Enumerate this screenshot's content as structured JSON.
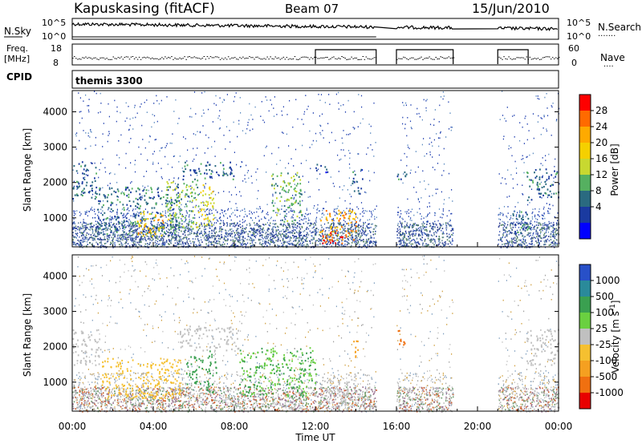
{
  "header": {
    "station": "Kapuskasing (fitACF)",
    "beam": "Beam 07",
    "date": "15/Jun/2010"
  },
  "params": {
    "nsky_label": "N.Sky",
    "nsearch_label": "N.Search",
    "freq_label_1": "Freq.",
    "freq_label_2": "[MHz]",
    "nave_label": "Nave",
    "cpid_label": "CPID",
    "cpid_value": "themis 3300",
    "noise_ticks_left": [
      "10^5",
      "10^0"
    ],
    "noise_ticks_right": [
      "10^5",
      "10^0"
    ],
    "freq_ticks": [
      "18",
      "8"
    ],
    "nave_ticks": [
      "60",
      "0"
    ]
  },
  "chart_data": [
    {
      "type": "heatmap",
      "name": "power",
      "title": "",
      "xlabel": "Time UT",
      "ylabel": "Slant Range [km]",
      "xlim": [
        0,
        24
      ],
      "ylim": [
        180,
        4600
      ],
      "yticks": [
        1000,
        2000,
        3000,
        4000
      ],
      "ytick_labels": [
        "1000",
        "2000",
        "3000",
        "4000"
      ],
      "xtick_labels": [
        "00:00",
        "04:00",
        "08:00",
        "12:00",
        "16:00",
        "20:00",
        "00:00"
      ],
      "colorbar": {
        "label": "Power [dB]",
        "tick_labels": [
          "28",
          "24",
          "20",
          "16",
          "12",
          "8",
          "4"
        ],
        "colors": [
          "#ff0000",
          "#ff6a00",
          "#ffaa00",
          "#f5d000",
          "#c8d830",
          "#55b060",
          "#2a6a80",
          "#1a3aa0",
          "#0000ff"
        ]
      },
      "data_gaps_hours": [
        [
          15.0,
          16.0
        ],
        [
          18.8,
          21.0
        ]
      ],
      "features": [
        {
          "t0": 0.0,
          "t1": 1.2,
          "r0": 1550,
          "r1": 2650,
          "level": 6
        },
        {
          "t0": 1.2,
          "t1": 5.4,
          "r0": 550,
          "r1": 1900,
          "level": 7
        },
        {
          "t0": 3.2,
          "t1": 4.6,
          "r0": 500,
          "r1": 1200,
          "level": 20
        },
        {
          "t0": 4.6,
          "t1": 6.2,
          "r0": 700,
          "r1": 2100,
          "level": 12
        },
        {
          "t0": 5.4,
          "t1": 8.0,
          "r0": 2100,
          "r1": 2600,
          "level": 6
        },
        {
          "t0": 6.2,
          "t1": 7.0,
          "r0": 750,
          "r1": 1950,
          "level": 16
        },
        {
          "t0": 9.8,
          "t1": 11.3,
          "r0": 900,
          "r1": 2300,
          "level": 11
        },
        {
          "t0": 12.2,
          "t1": 14.0,
          "r0": 350,
          "r1": 1250,
          "level": 21
        },
        {
          "t0": 12.3,
          "t1": 13.6,
          "r0": 300,
          "r1": 600,
          "level": 27
        },
        {
          "t0": 12.0,
          "t1": 12.6,
          "r0": 2250,
          "r1": 2550,
          "level": 5
        },
        {
          "t0": 13.8,
          "t1": 14.3,
          "r0": 1700,
          "r1": 2400,
          "level": 5
        },
        {
          "t0": 16.0,
          "t1": 16.5,
          "r0": 2050,
          "r1": 2400,
          "level": 5
        },
        {
          "t0": 21.7,
          "t1": 22.6,
          "r0": 550,
          "r1": 1200,
          "level": 7
        },
        {
          "t0": 22.4,
          "t1": 24.0,
          "r0": 1500,
          "r1": 2400,
          "level": 6
        }
      ]
    },
    {
      "type": "heatmap",
      "name": "velocity",
      "title": "",
      "xlabel": "Time UT",
      "ylabel": "Slant Range [km]",
      "xlim": [
        0,
        24
      ],
      "ylim": [
        180,
        4600
      ],
      "yticks": [
        1000,
        2000,
        3000,
        4000
      ],
      "ytick_labels": [
        "1000",
        "2000",
        "3000",
        "4000"
      ],
      "xtick_labels": [
        "00:00",
        "04:00",
        "08:00",
        "12:00",
        "16:00",
        "20:00",
        "00:00"
      ],
      "colorbar": {
        "label": "Velocity [m s^-1]",
        "tick_labels": [
          "1000",
          "500",
          "100",
          "25",
          "-25",
          "-100",
          "-500",
          "-1000"
        ],
        "colors": [
          "#2850c8",
          "#2a8a9a",
          "#3aa050",
          "#6ad040",
          "#c0c0c0",
          "#f5c030",
          "#f5a020",
          "#f07010",
          "#e80000"
        ]
      },
      "data_gaps_hours": [
        [
          15.0,
          16.0
        ],
        [
          18.8,
          21.0
        ]
      ],
      "features": [
        {
          "t0": 0.0,
          "t1": 1.4,
          "r0": 1500,
          "r1": 2500,
          "vel": 0
        },
        {
          "t0": 1.4,
          "t1": 5.3,
          "r0": 550,
          "r1": 1700,
          "vel": -60
        },
        {
          "t0": 5.3,
          "t1": 8.2,
          "r0": 1900,
          "r1": 2600,
          "vel": 0
        },
        {
          "t0": 5.6,
          "t1": 6.6,
          "r0": 950,
          "r1": 1750,
          "vel": 200
        },
        {
          "t0": 6.6,
          "t1": 7.1,
          "r0": 700,
          "r1": 2000,
          "vel": 120
        },
        {
          "t0": 8.2,
          "t1": 12.0,
          "r0": 600,
          "r1": 2000,
          "vel": 60
        },
        {
          "t0": 12.2,
          "t1": 14.0,
          "r0": 300,
          "r1": 1250,
          "vel": 0
        },
        {
          "t0": 13.8,
          "t1": 14.2,
          "r0": 1700,
          "r1": 2200,
          "vel": -150
        },
        {
          "t0": 16.0,
          "t1": 16.5,
          "r0": 2050,
          "r1": 2500,
          "vel": -400
        },
        {
          "t0": 22.4,
          "t1": 24.0,
          "r0": 1500,
          "r1": 2500,
          "vel": 0
        }
      ]
    }
  ]
}
